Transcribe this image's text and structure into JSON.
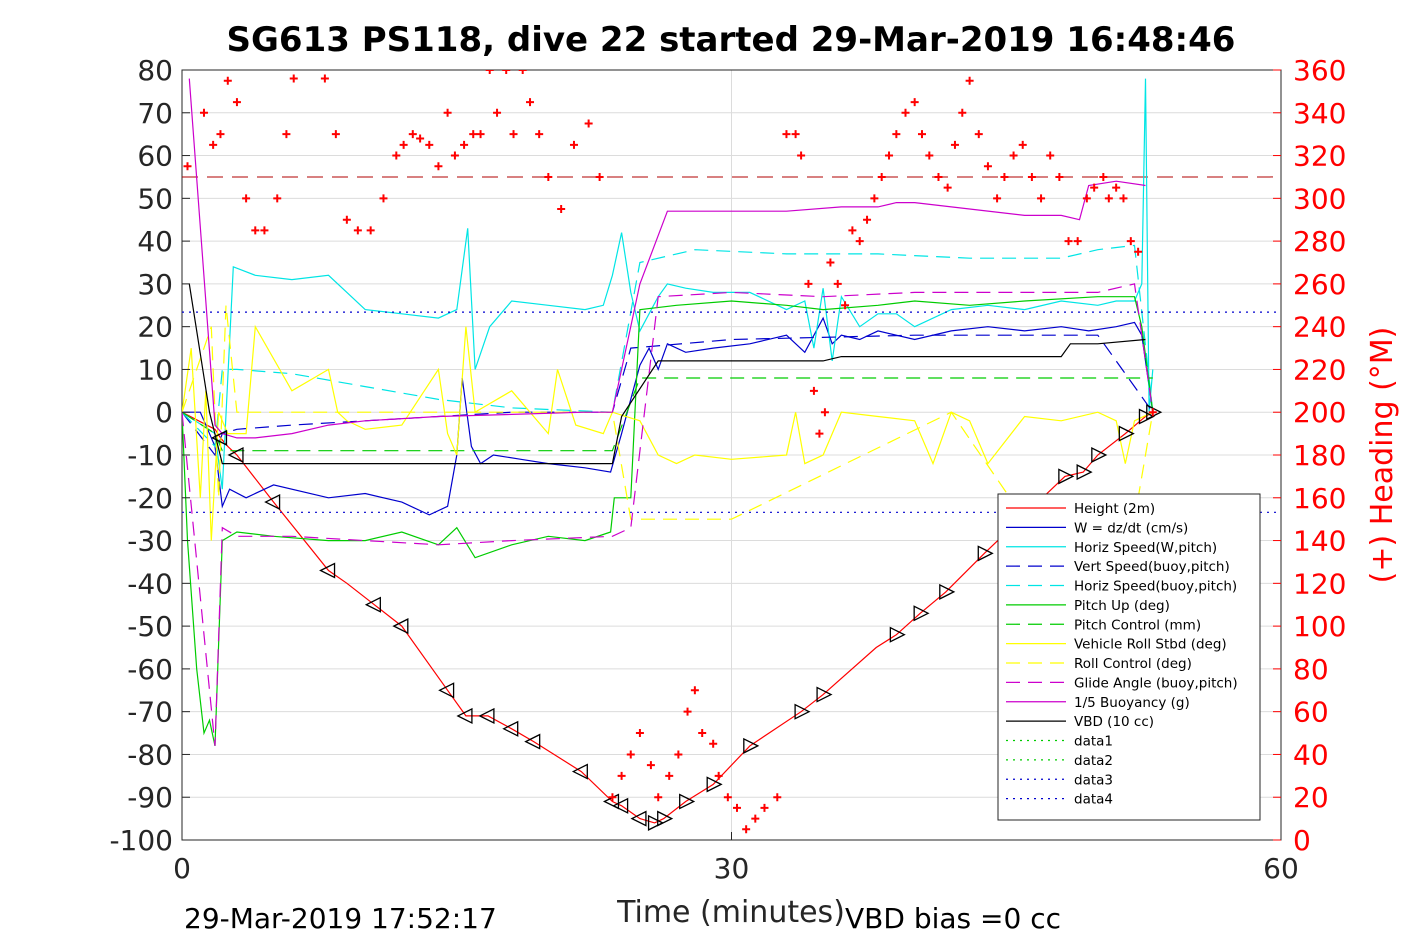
{
  "chart_data": {
    "type": "line",
    "title": "SG613 PS118, dive 22 started 29-Mar-2019 16:48:46",
    "xlabel": "Time (minutes)",
    "ylabel_right": "(+) Heading (°M)",
    "xlim": [
      0,
      60
    ],
    "ylim_left": [
      -100,
      80
    ],
    "ylim_right": [
      0,
      360
    ],
    "x_ticks": [
      "0",
      "30",
      "60"
    ],
    "y_ticks_left": [
      "80",
      "70",
      "60",
      "50",
      "40",
      "30",
      "20",
      "10",
      "0",
      "-10",
      "-20",
      "-30",
      "-40",
      "-50",
      "-60",
      "-70",
      "-80",
      "-90",
      "-100"
    ],
    "y_ticks_right": [
      "360",
      "340",
      "320",
      "300",
      "280",
      "260",
      "240",
      "220",
      "200",
      "180",
      "160",
      "140",
      "120",
      "100",
      "80",
      "60",
      "40",
      "20",
      "0"
    ],
    "grid": true,
    "legend_position": "bottom-right",
    "footer_left": "29-Mar-2019 17:52:17",
    "footer_right": "VBD bias =0 cc",
    "colors": {
      "height": "#ff0000",
      "w": "#0000cd",
      "cyan": "#00e5e5",
      "green": "#00cc00",
      "yellow": "#ffff00",
      "magenta": "#cc00cc",
      "vbd": "#000000",
      "heading": "#ff0000"
    },
    "series": [
      {
        "name": "Height (2m)",
        "color": "#ff0000",
        "style": "solid",
        "x": [
          0,
          1.8,
          2.1,
          2.5,
          3,
          5,
          8,
          9,
          10.5,
          12,
          14.5,
          15.5,
          16.7,
          18,
          19.2,
          21.8,
          23.5,
          24,
          25,
          25.8,
          26.3,
          27.5,
          29,
          31,
          33.8,
          35,
          37.9,
          39,
          40.3,
          41.7,
          43.8,
          46,
          48.2,
          49.2,
          50,
          51.5,
          52.6,
          53
        ],
        "y": [
          0,
          -4,
          -6,
          -8,
          -10,
          -21,
          -37,
          -40,
          -45,
          -50,
          -65,
          -71,
          -71,
          -74,
          -77,
          -84,
          -91,
          -92,
          -95,
          -96,
          -95,
          -91,
          -87,
          -78,
          -70,
          -66,
          -55,
          -52,
          -47,
          -42,
          -33,
          -24,
          -15,
          -14,
          -10,
          -5,
          -1,
          0
        ]
      },
      {
        "name": "W = dz/dt (cm/s)",
        "color": "#0000cd",
        "style": "solid",
        "x": [
          0,
          1,
          1.8,
          2.2,
          2.6,
          3.5,
          5,
          8,
          10,
          12,
          13.5,
          14.5,
          15,
          15.3,
          15.8,
          16.3,
          17,
          18.5,
          20,
          22,
          23.4,
          24,
          25,
          25.5,
          26,
          26.5,
          27.5,
          29,
          31,
          33,
          34,
          35,
          35.5,
          36,
          37,
          38,
          40,
          42,
          44,
          46,
          48,
          49.5,
          51,
          52,
          52.4,
          53
        ],
        "y": [
          0,
          0,
          -8,
          -22,
          -18,
          -20,
          -17,
          -20,
          -19,
          -21,
          -24,
          -22,
          -10,
          8,
          -8,
          -12,
          -10,
          -11,
          -12,
          -13,
          -14,
          -5,
          11,
          15,
          10,
          16,
          14,
          15,
          16,
          18,
          14,
          22,
          16,
          18,
          17,
          19,
          17,
          19,
          20,
          19,
          20,
          19,
          20,
          21,
          18,
          0
        ]
      },
      {
        "name": "Horiz Speed(W,pitch)",
        "color": "#00e5e5",
        "style": "solid",
        "x": [
          0,
          1.8,
          2.2,
          2.8,
          4,
          6,
          8,
          9,
          10,
          12,
          14,
          15,
          15.6,
          16,
          16.8,
          18,
          20,
          22,
          23,
          23.5,
          24,
          24.5,
          25,
          26,
          26.5,
          27.5,
          29,
          31,
          33,
          34,
          34.5,
          35,
          35.5,
          36,
          37,
          38,
          39,
          40,
          42,
          44,
          46,
          48,
          50,
          51,
          52,
          52.4,
          52.6,
          52.8,
          53
        ],
        "y": [
          0,
          -5,
          -18,
          34,
          32,
          31,
          32,
          28,
          24,
          23,
          22,
          24,
          43,
          10,
          20,
          26,
          25,
          24,
          25,
          32,
          42,
          28,
          19,
          27,
          30,
          29,
          28,
          28,
          24,
          26,
          15,
          29,
          12,
          27,
          20,
          23,
          23,
          20,
          24,
          25,
          24,
          26,
          25,
          26,
          26,
          30,
          78,
          0,
          10
        ]
      },
      {
        "name": "Vert Speed(buoy,pitch)",
        "color": "#0000cd",
        "style": "dash",
        "x": [
          0,
          1.8,
          2.2,
          3,
          6,
          10,
          14,
          18,
          23.5,
          24.5,
          30,
          40,
          50,
          53
        ],
        "y": [
          0,
          -10,
          -5,
          -4,
          -3,
          -2,
          -1,
          0,
          0,
          15,
          17,
          18,
          18,
          0
        ]
      },
      {
        "name": "Horiz Speed(buoy,pitch)",
        "color": "#00e5e5",
        "style": "dash",
        "x": [
          0,
          1.8,
          2.2,
          3,
          6,
          10,
          14,
          18,
          23.5,
          25,
          28,
          33,
          38,
          43,
          46,
          48,
          50,
          52,
          53
        ],
        "y": [
          0,
          -8,
          10,
          10,
          9,
          6,
          3,
          1,
          0,
          35,
          38,
          37,
          37,
          36,
          36,
          36,
          38,
          39,
          0
        ]
      },
      {
        "name": "Pitch Up (deg)",
        "color": "#00cc00",
        "style": "solid",
        "x": [
          0,
          0.3,
          0.8,
          1.2,
          1.5,
          1.8,
          2.2,
          3,
          5,
          8,
          10,
          12,
          14,
          15,
          16,
          18,
          20,
          22,
          23.4,
          23.6,
          24.5,
          25,
          27,
          30,
          33,
          35,
          38,
          40,
          43,
          46,
          50,
          52,
          52.4,
          53
        ],
        "y": [
          0,
          -30,
          -60,
          -75,
          -72,
          -78,
          -30,
          -28,
          -29,
          -30,
          -30,
          -28,
          -31,
          -27,
          -34,
          -31,
          -29,
          -30,
          -28,
          -20,
          -20,
          24,
          25,
          26,
          25,
          24,
          25,
          26,
          25,
          26,
          27,
          27,
          20,
          0
        ]
      },
      {
        "name": "Pitch Control (mm)",
        "color": "#00cc00",
        "style": "dash",
        "x": [
          0,
          1.8,
          2.2,
          23.5,
          25,
          53
        ],
        "y": [
          0,
          -5,
          -9,
          -9,
          8,
          8
        ]
      },
      {
        "name": "Vehicle Roll Stbd (deg)",
        "color": "#ffff00",
        "style": "solid",
        "x": [
          0,
          0.5,
          1,
          1.3,
          1.6,
          2,
          2.5,
          3.5,
          4,
          6,
          8,
          8.5,
          9,
          10,
          12,
          14,
          14.5,
          15,
          15.5,
          16,
          18,
          20,
          20.5,
          21.5,
          23,
          23.5,
          25,
          26,
          27,
          28,
          30,
          33,
          33.5,
          34,
          35,
          36,
          38,
          40,
          41,
          42,
          43,
          44,
          46,
          48,
          50,
          51,
          51.5,
          52,
          53
        ],
        "y": [
          0,
          15,
          -20,
          5,
          -30,
          0,
          -5,
          -5,
          20,
          5,
          10,
          0,
          -2,
          -4,
          -3,
          10,
          -5,
          -10,
          20,
          0,
          5,
          -5,
          10,
          -3,
          -5,
          0,
          -2,
          -10,
          -12,
          -10,
          -11,
          -10,
          0,
          -12,
          -10,
          0,
          -1,
          -2,
          -12,
          0,
          -2,
          -12,
          -1,
          -2,
          0,
          -2,
          -12,
          -2,
          0
        ]
      },
      {
        "name": "Roll Control (deg)",
        "color": "#ffff00",
        "style": "dash",
        "x": [
          0,
          1.6,
          2,
          2.4,
          3,
          23.5,
          24.5,
          30,
          42,
          46,
          52,
          53
        ],
        "y": [
          0,
          20,
          -20,
          25,
          0,
          0,
          -25,
          -25,
          0,
          -25,
          -25,
          0
        ]
      },
      {
        "name": "Glide Angle (buoy,pitch)",
        "color": "#cc00cc",
        "style": "dash",
        "x": [
          0,
          1.8,
          2.2,
          3,
          6,
          10,
          14,
          18,
          23.5,
          24.5,
          26,
          30,
          35,
          40,
          45,
          50,
          52,
          53
        ],
        "y": [
          0,
          -78,
          -27,
          -29,
          -29,
          -30,
          -31,
          -30,
          -29,
          -27,
          27,
          28,
          27,
          28,
          28,
          28,
          30,
          0
        ]
      },
      {
        "name": "1/5 Buoyancy (g)",
        "color": "#cc00cc",
        "style": "solid",
        "x": [
          0.4,
          1.8,
          2.2,
          3,
          4,
          6,
          8,
          10,
          14,
          18,
          22,
          23.5,
          25,
          26.5,
          29,
          33,
          36,
          38,
          39,
          40,
          42,
          46,
          48,
          49,
          49.5,
          51,
          52.6
        ],
        "y": [
          78,
          -3,
          -5,
          -6,
          -6,
          -5,
          -3,
          -2,
          -1,
          -0.5,
          0,
          0,
          30,
          47,
          47,
          47,
          48,
          48,
          49,
          49,
          48,
          46,
          46,
          45,
          53,
          54,
          53
        ]
      },
      {
        "name": "VBD (10 cc)",
        "color": "#000000",
        "style": "solid",
        "x": [
          0.4,
          1.5,
          2.2,
          3,
          23.5,
          24,
          26,
          30,
          33,
          34,
          35,
          36,
          38,
          39,
          42,
          46,
          48,
          48.5,
          50,
          52.6
        ],
        "y": [
          30,
          0,
          -12,
          -12,
          -12,
          -1,
          12,
          12,
          12,
          12,
          12,
          13,
          13,
          13,
          13,
          13,
          13,
          16,
          16,
          17
        ]
      },
      {
        "name": "data1",
        "color": "#00cc00",
        "style": "dot",
        "x": [],
        "y": []
      },
      {
        "name": "data2",
        "color": "#00cc00",
        "style": "dot",
        "x": [],
        "y": []
      },
      {
        "name": "data3",
        "color": "#0000cd",
        "style": "dot",
        "x": [
          0,
          60
        ],
        "y": [
          23.4,
          23.4
        ]
      },
      {
        "name": "data4",
        "color": "#0000cd",
        "style": "dot",
        "x": [
          0,
          60
        ],
        "y": [
          -23.4,
          -23.4
        ]
      }
    ],
    "heading_ref_dashed": 310,
    "heading": {
      "x": [
        0.3,
        1.2,
        1.7,
        2.1,
        2.5,
        3,
        3.5,
        4,
        4.5,
        5.2,
        5.7,
        6.1,
        7.8,
        8.4,
        9,
        9.6,
        10.3,
        11,
        11.7,
        12.1,
        12.6,
        13,
        13.5,
        14,
        14.5,
        14.9,
        15.4,
        15.9,
        16.3,
        16.8,
        17.2,
        17.7,
        18.1,
        18.6,
        19,
        19.5,
        20,
        20.7,
        21.4,
        22.2,
        22.8,
        23.5,
        24,
        24.5,
        25,
        25.6,
        26,
        26.6,
        27.1,
        27.6,
        28,
        28.4,
        29,
        29.3,
        29.8,
        30.3,
        30.8,
        31.3,
        31.8,
        32.5,
        33,
        33.5,
        33.8,
        34.2,
        34.5,
        34.8,
        35.1,
        35.4,
        35.8,
        36.2,
        36.6,
        37,
        37.4,
        37.8,
        38.2,
        38.6,
        39,
        39.5,
        40,
        40.4,
        40.8,
        41.3,
        41.8,
        42.2,
        42.6,
        43,
        43.5,
        44,
        44.5,
        44.9,
        45.4,
        45.9,
        46.4,
        46.9,
        47.4,
        47.9,
        48.4,
        48.9,
        49.4,
        49.8,
        50.3,
        50.6,
        51,
        51.4,
        51.8,
        52.2,
        52.6,
        53
      ],
      "y": [
        315,
        340,
        325,
        330,
        355,
        345,
        300,
        285,
        285,
        300,
        330,
        356,
        356,
        330,
        290,
        285,
        285,
        300,
        320,
        325,
        330,
        328,
        325,
        315,
        340,
        320,
        325,
        330,
        330,
        360,
        340,
        360,
        330,
        360,
        345,
        330,
        310,
        295,
        325,
        335,
        310,
        20,
        30,
        40,
        50,
        35,
        20,
        30,
        40,
        60,
        70,
        50,
        45,
        30,
        20,
        15,
        5,
        10,
        15,
        20,
        330,
        330,
        320,
        260,
        210,
        190,
        200,
        270,
        260,
        250,
        285,
        280,
        290,
        300,
        310,
        320,
        330,
        340,
        345,
        330,
        320,
        310,
        305,
        325,
        340,
        355,
        330,
        315,
        300,
        310,
        320,
        325,
        310,
        300,
        320,
        310,
        280,
        280,
        300,
        305,
        310,
        300,
        305,
        300,
        280,
        275,
        30,
        200
      ],
      "_note_ignore": ""
    }
  }
}
